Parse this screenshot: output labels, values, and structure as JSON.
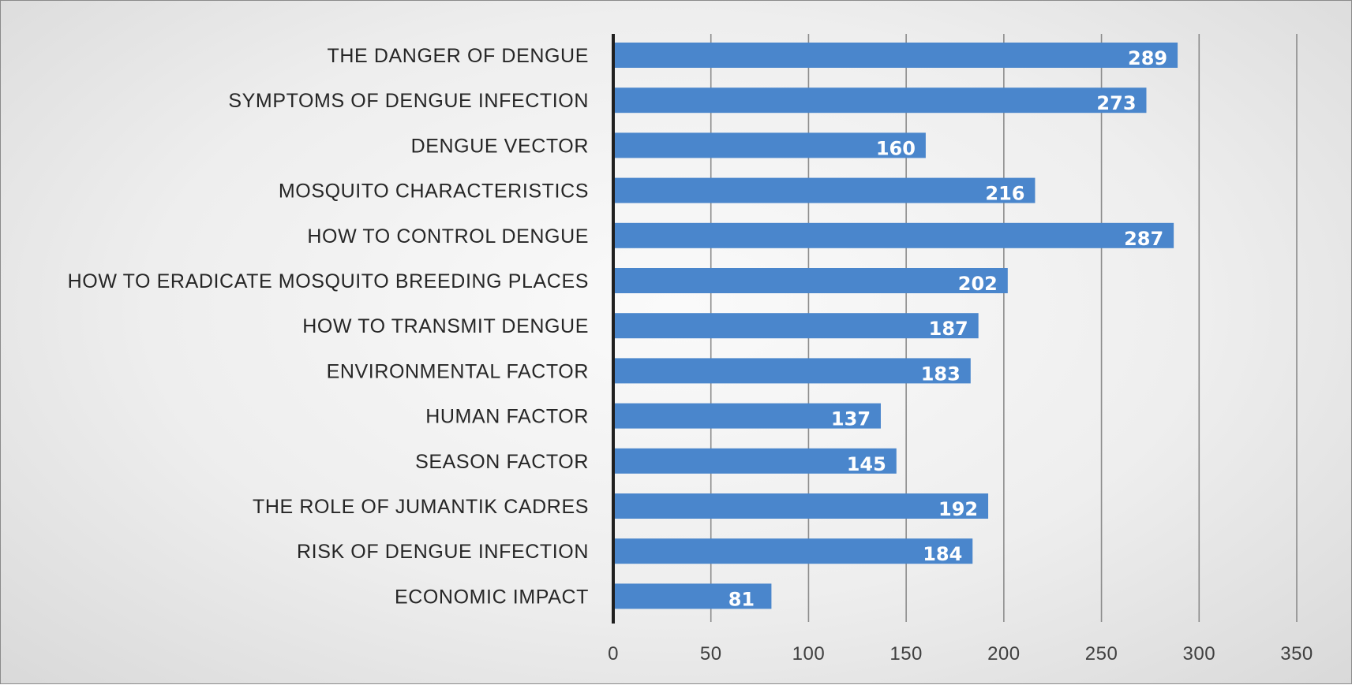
{
  "chart_data": {
    "type": "bar",
    "orientation": "horizontal",
    "title": "",
    "xlabel": "",
    "ylabel": "",
    "xlim": [
      0,
      350
    ],
    "ticks": [
      0,
      50,
      100,
      150,
      200,
      250,
      300,
      350
    ],
    "grid": true,
    "bar_color": "#4a86cc",
    "categories": [
      "THE DANGER OF DENGUE",
      "SYMPTOMS OF DENGUE INFECTION",
      "DENGUE VECTOR",
      "MOSQUITO CHARACTERISTICS",
      "HOW TO CONTROL DENGUE",
      "HOW TO ERADICATE MOSQUITO BREEDING PLACES",
      "HOW TO TRANSMIT DENGUE",
      "ENVIRONMENTAL FACTOR",
      "HUMAN FACTOR",
      "SEASON FACTOR",
      "THE ROLE OF JUMANTIK CADRES",
      "RISK OF DENGUE INFECTION",
      "ECONOMIC IMPACT"
    ],
    "values": [
      289,
      273,
      160,
      216,
      287,
      202,
      187,
      183,
      137,
      145,
      192,
      184,
      81
    ]
  }
}
